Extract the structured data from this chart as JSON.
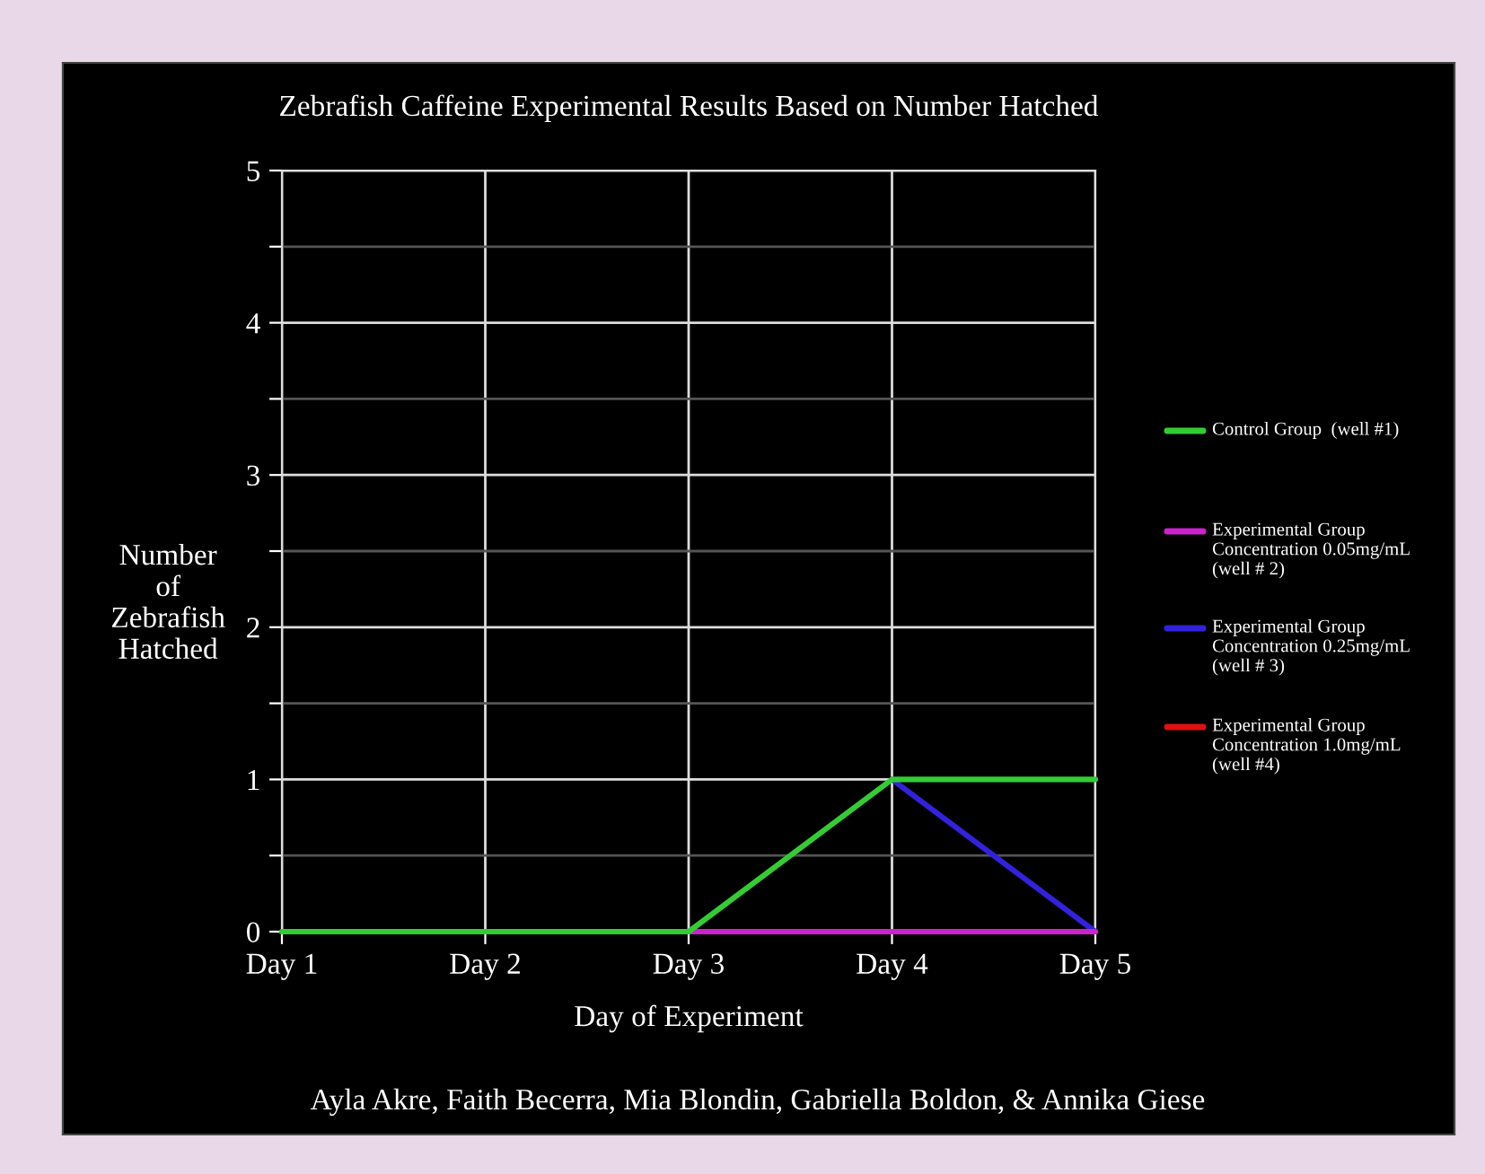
{
  "chart_data": {
    "type": "line",
    "title": "Zebrafish Caffeine Experimental Results Based on Number Hatched",
    "xlabel": "Day of Experiment",
    "ylabel": "Number of Zebrafish Hatched",
    "categories": [
      "Day 1",
      "Day 2",
      "Day 3",
      "Day 4",
      "Day 5"
    ],
    "series": [
      {
        "name": "Control Group  (well #1)",
        "color": "#33cc33",
        "values": [
          0,
          0,
          0,
          1,
          1
        ]
      },
      {
        "name": "Experimental Group Concentration 0.05mg/mL  (well # 2)",
        "color": "#cc22cc",
        "values": [
          null,
          null,
          0,
          0,
          0
        ]
      },
      {
        "name": "Experimental Group Concentration 0.25mg/mL  (well # 3)",
        "color": "#3322dd",
        "values": [
          null,
          null,
          null,
          1,
          0
        ]
      },
      {
        "name": "Experimental Group Concentration 1.0mg/mL  (well #4)",
        "color": "#dd1111",
        "values": [
          null,
          null,
          null,
          null,
          null
        ]
      }
    ],
    "ylim": [
      0,
      5
    ],
    "yticks": [
      0,
      {
        "value": 0.5,
        "label": null
      },
      1,
      {
        "value": 1.5,
        "label": null
      },
      2,
      {
        "value": 2.5,
        "label": null
      },
      3,
      {
        "value": 3.5,
        "label": null
      },
      4,
      {
        "value": 4.5,
        "label": null
      },
      5
    ],
    "grid": true,
    "legend": "right",
    "marker": "none",
    "line_style": "solid",
    "annotations": [
      "Ayla Akre, Faith Becerra, Mia Blondin, Gabriella Boldon, & Annika Giese"
    ]
  }
}
